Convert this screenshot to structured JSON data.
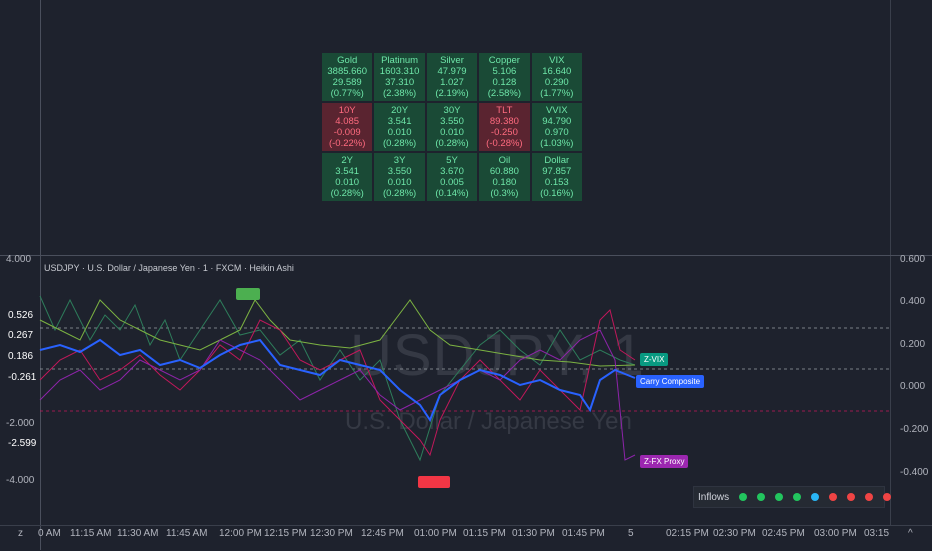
{
  "table": [
    {
      "name": "Gold",
      "price": "3885.660",
      "chg": "29.589 (0.77%)",
      "dir": "up"
    },
    {
      "name": "Platinum",
      "price": "1603.310",
      "chg": "37.310 (2.38%)",
      "dir": "up"
    },
    {
      "name": "Silver",
      "price": "47.979",
      "chg": "1.027 (2.19%)",
      "dir": "up"
    },
    {
      "name": "Copper",
      "price": "5.106",
      "chg": "0.128 (2.58%)",
      "dir": "up"
    },
    {
      "name": "VIX",
      "price": "16.640",
      "chg": "0.290 (1.77%)",
      "dir": "up"
    },
    {
      "name": "10Y",
      "price": "4.085",
      "chg": "-0.009 (-0.22%)",
      "dir": "dn"
    },
    {
      "name": "20Y",
      "price": "3.541",
      "chg": "0.010 (0.28%)",
      "dir": "up"
    },
    {
      "name": "30Y",
      "price": "3.550",
      "chg": "0.010 (0.28%)",
      "dir": "up"
    },
    {
      "name": "TLT",
      "price": "89.380",
      "chg": "-0.250 (-0.28%)",
      "dir": "dn"
    },
    {
      "name": "VVIX",
      "price": "94.790",
      "chg": "0.970 (1.03%)",
      "dir": "up"
    },
    {
      "name": "2Y",
      "price": "3.541",
      "chg": "0.010 (0.28%)",
      "dir": "up"
    },
    {
      "name": "3Y",
      "price": "3.550",
      "chg": "0.010 (0.28%)",
      "dir": "up"
    },
    {
      "name": "5Y",
      "price": "3.670",
      "chg": "0.005 (0.14%)",
      "dir": "up"
    },
    {
      "name": "Oil",
      "price": "60.880",
      "chg": "0.180 (0.3%)",
      "dir": "up"
    },
    {
      "name": "Dollar",
      "price": "97.857",
      "chg": "0.153 (0.16%)",
      "dir": "up"
    }
  ],
  "chart_title": "USDJPY · U.S. Dollar / Japanese Yen · 1 · FXCM · Heikin Ashi",
  "watermark": {
    "symbol": "USDJPY, 1",
    "name": "U.S. Dollar / Japanese Yen"
  },
  "right_axis": [
    "0.600",
    "0.400",
    "0.200",
    "0.000",
    "-0.200",
    "-0.400"
  ],
  "left_axis": [
    "4.000",
    "-2.000",
    "-4.000"
  ],
  "left_badges": [
    {
      "text": "0.526",
      "color": "#f23645"
    },
    {
      "text": "0.267",
      "color": "#089981"
    },
    {
      "text": "0.186",
      "color": "#4caf50"
    },
    {
      "text": "-0.261",
      "color": "#2962ff"
    },
    {
      "text": "-2.599",
      "color": "#9c27b0"
    }
  ],
  "time_labels": [
    "0 AM",
    "11:15 AM",
    "11:30 AM",
    "11:45 AM",
    "12:00 PM",
    "12:15 PM",
    "12:30 PM",
    "12:45 PM",
    "01:00 PM",
    "01:15 PM",
    "01:30 PM",
    "01:45 PM",
    "5",
    "02:15 PM",
    "02:30 PM",
    "02:45 PM",
    "03:00 PM",
    "03:15"
  ],
  "series_labels": {
    "zvix": "Z-VIX",
    "carry": "Carry Composite",
    "zfx": "Z-FX Proxy"
  },
  "inflows": {
    "label": "Inflows",
    "dots": [
      "#22c55e",
      "#22c55e",
      "#22c55e",
      "#22c55e",
      "#29b6f6",
      "#ef4444",
      "#ef4444",
      "#ef4444",
      "#ef4444"
    ]
  },
  "bottom_left": "z",
  "bottom_right": "^"
}
